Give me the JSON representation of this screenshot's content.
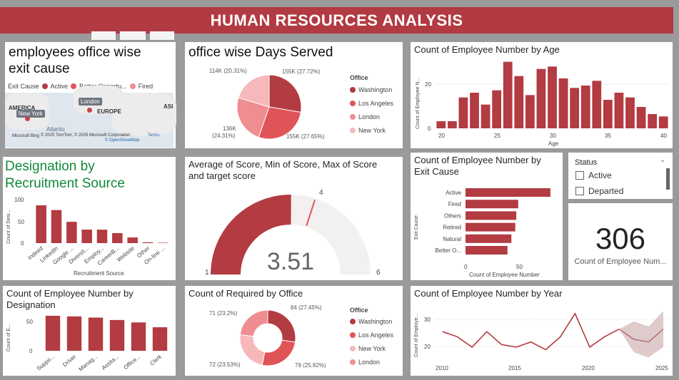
{
  "header": {
    "title": "HUMAN RESOURCES ANALYSIS"
  },
  "colors": {
    "accent": "#b23a42",
    "dark_red": "#b33b42",
    "red": "#e05458",
    "pink": "#ef8d91",
    "light_pink": "#f6b8ba"
  },
  "map_card": {
    "title_line1": "employees office wise",
    "title_line2": "exit cause",
    "legend_label": "Exit Cause",
    "legend_items": [
      "Active",
      "Better Opportu...",
      "Fired"
    ],
    "places": {
      "america": "AMERICA",
      "new_york": "New York",
      "london": "London",
      "europe": "EUROPE",
      "atlantic": "Atlantic",
      "asia": "ASI"
    },
    "attribution": "© 2025 TomTom, © 2025 Microsoft Corporation",
    "terms": "Terms",
    "osm": "© OpenStreetMap",
    "bing": "Microsoft Bing"
  },
  "days_card": {
    "title": "office wise Days Served",
    "legend_title": "Office",
    "legend": [
      "Washington",
      "Los Angeles",
      "London",
      "New York"
    ],
    "labels": [
      "155K (27.72%)",
      "155K (27.65%)",
      "136K",
      "(24.31%)",
      "114K (20.31%)"
    ]
  },
  "age_card": {
    "title": "Count of Employee Number by Age",
    "ylabel": "Count of Employee N...",
    "xlabel": "Age",
    "yticks": [
      "20",
      "0"
    ],
    "xticks": [
      "20",
      "25",
      "30",
      "35",
      "40"
    ]
  },
  "recruit_card": {
    "title_line1": "Designation by",
    "title_line2": "Recruitment Source",
    "ylabel": "Count of Desi...",
    "xlabel": "Recruitment Source",
    "yticks": [
      "100",
      "50",
      "0"
    ],
    "xticks": [
      "Indeed",
      "LinkedIn",
      "Google ...",
      "Diversit...",
      "Employ...",
      "CareerB...",
      "Website",
      "Other",
      "On-line ..."
    ]
  },
  "gauge_card": {
    "title_line1": "Average of Score, Min of Score, Max of Score",
    "title_line2": "and target score",
    "value": "3.51",
    "min": "1",
    "max": "6",
    "target": "4"
  },
  "exit_card": {
    "title_line1": "Count of Employee Number by",
    "title_line2": "Exit Cause",
    "ylabel": "Exit Cause",
    "xlabel": "Count of Employee Number",
    "categories": [
      "Active",
      "Fired",
      "Others",
      "Retired",
      "Natural",
      "Better O..."
    ],
    "xticks": [
      "0",
      "50"
    ]
  },
  "status_slicer": {
    "title": "Status",
    "options": [
      "Active",
      "Departed"
    ]
  },
  "kpi": {
    "value": "306",
    "label": "Count of Employee Num..."
  },
  "designation_card": {
    "title_line1": "Count of Employee Number by",
    "title_line2": "Designation",
    "ylabel": "Count of E...",
    "yticks": [
      "50",
      "0"
    ],
    "xticks": [
      "Suppo...",
      "Driver",
      "Manag...",
      "Assita...",
      "Office...",
      "Clerk"
    ]
  },
  "required_card": {
    "title": "Count of Required by Office",
    "legend_title": "Office",
    "legend": [
      "Washington",
      "Los Angeles",
      "New York",
      "London"
    ],
    "labels": [
      "84 (27.45%)",
      "79 (25.82%)",
      "72 (23.53%)",
      "71 (23.2%)"
    ]
  },
  "year_card": {
    "title": "Count of Employee Number by Year",
    "ylabel": "Count of Employe...",
    "yticks": [
      "30",
      "20"
    ],
    "xticks": [
      "2010",
      "2015",
      "2020",
      "2025"
    ]
  },
  "chart_data": [
    {
      "type": "pie",
      "title": "office wise Days Served",
      "categories": [
        "Washington",
        "Los Angeles",
        "London",
        "New York"
      ],
      "values": [
        155,
        155,
        136,
        114
      ],
      "percent": [
        27.72,
        27.65,
        24.31,
        20.31
      ],
      "colors": [
        "#b33b42",
        "#e05458",
        "#ef8d91",
        "#f6b8ba"
      ]
    },
    {
      "type": "bar",
      "title": "Count of Employee Number by Age",
      "x": [
        20,
        21,
        22,
        23,
        24,
        25,
        26,
        27,
        28,
        29,
        30,
        31,
        32,
        33,
        34,
        35,
        36,
        37,
        38,
        39,
        40
      ],
      "values": [
        3,
        3,
        13,
        15,
        10,
        16,
        28,
        22,
        14,
        25,
        26,
        21,
        17,
        18,
        20,
        12,
        15,
        13,
        9,
        6,
        5
      ],
      "ylim": [
        0,
        30
      ],
      "xlim": [
        19.5,
        40.5
      ],
      "xlabel": "Age"
    },
    {
      "type": "bar",
      "title": "Designation by Recruitment Source",
      "categories": [
        "Indeed",
        "LinkedIn",
        "Google ...",
        "Diversit...",
        "Employ...",
        "CareerB...",
        "Website",
        "Other",
        "On-line ..."
      ],
      "values": [
        87,
        76,
        49,
        31,
        31,
        23,
        13,
        2,
        1
      ],
      "ylim": [
        0,
        100
      ],
      "xlabel": "Recruitment Source"
    },
    {
      "type": "gauge",
      "title": "Average of Score, Min of Score, Max of Score and target score",
      "value": 3.51,
      "min": 1,
      "max": 6,
      "target": 4
    },
    {
      "type": "bar",
      "orientation": "horizontal",
      "title": "Count of Employee Number by Exit Cause",
      "categories": [
        "Active",
        "Fired",
        "Others",
        "Retired",
        "Natural",
        "Better O..."
      ],
      "values": [
        87,
        54,
        52,
        51,
        47,
        43
      ],
      "xlim": [
        0,
        90
      ]
    },
    {
      "type": "bar",
      "title": "Count of Employee Number by Designation",
      "categories": [
        "Suppo...",
        "Driver",
        "Manag...",
        "Assita...",
        "Office...",
        "Clerk"
      ],
      "values": [
        58,
        57,
        55,
        51,
        47,
        39
      ],
      "ylim": [
        0,
        65
      ]
    },
    {
      "type": "pie",
      "title": "Count of Required by Office",
      "donut": true,
      "categories": [
        "Washington",
        "Los Angeles",
        "New York",
        "London"
      ],
      "values": [
        84,
        79,
        72,
        71
      ],
      "percent": [
        27.45,
        25.82,
        23.53,
        23.2
      ],
      "colors": [
        "#b33b42",
        "#e05458",
        "#f6b8ba",
        "#ef8d91"
      ]
    },
    {
      "type": "line",
      "title": "Count of Employee Number by Year",
      "x": [
        2010,
        2011,
        2012,
        2013,
        2014,
        2015,
        2016,
        2017,
        2018,
        2019,
        2020,
        2021,
        2022
      ],
      "values": [
        26,
        24,
        20,
        26,
        21,
        20,
        22,
        19,
        24,
        33,
        20,
        24,
        27
      ],
      "forecast": {
        "x": [
          2022,
          2023,
          2024,
          2025
        ],
        "values": [
          27,
          23,
          22,
          27
        ],
        "upper": [
          27,
          30,
          28,
          34
        ],
        "lower": [
          27,
          18,
          16,
          20
        ]
      },
      "ylim": [
        15,
        36
      ],
      "xlim": [
        2010,
        2025
      ]
    }
  ]
}
